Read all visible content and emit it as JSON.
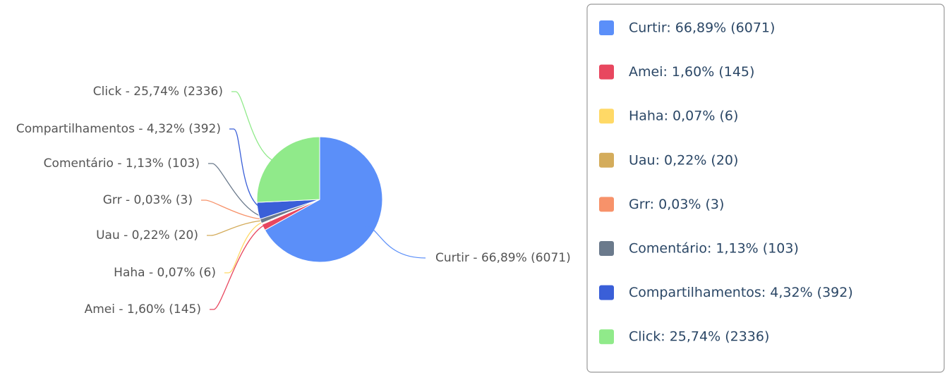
{
  "chart_data": {
    "type": "pie",
    "categories": [
      "Curtir: 66,89% (6071)",
      "Amei: 1,60% (145)",
      "Haha: 0,07% (6)",
      "Uau: 0,22% (20)",
      "Grr: 0,03% (3)",
      "Comentário: 1,13% (103)",
      "Compartilhamentos: 4,32% (392)",
      "Click: 25,74% (2336)"
    ],
    "values": [
      6071,
      145,
      6,
      20,
      3,
      103,
      392,
      2336
    ],
    "value_labels": [
      "Curtir - 66,89% (6071)",
      "Amei - 1,60% (145)",
      "Haha - 0,07% (6)",
      "Uau - 0,22% (20)",
      "Grr - 0,03% (3)",
      "Comentário - 1,13% (103)",
      "Compartilhamentos - 4,32% (392)",
      "Click - 25,74% (2336)"
    ],
    "colors": [
      "#5b8ff9",
      "#e8475f",
      "#ffd966",
      "#d4ac5b",
      "#f7926a",
      "#6b7a8c",
      "#3a5fd8",
      "#90ea8a"
    ]
  }
}
